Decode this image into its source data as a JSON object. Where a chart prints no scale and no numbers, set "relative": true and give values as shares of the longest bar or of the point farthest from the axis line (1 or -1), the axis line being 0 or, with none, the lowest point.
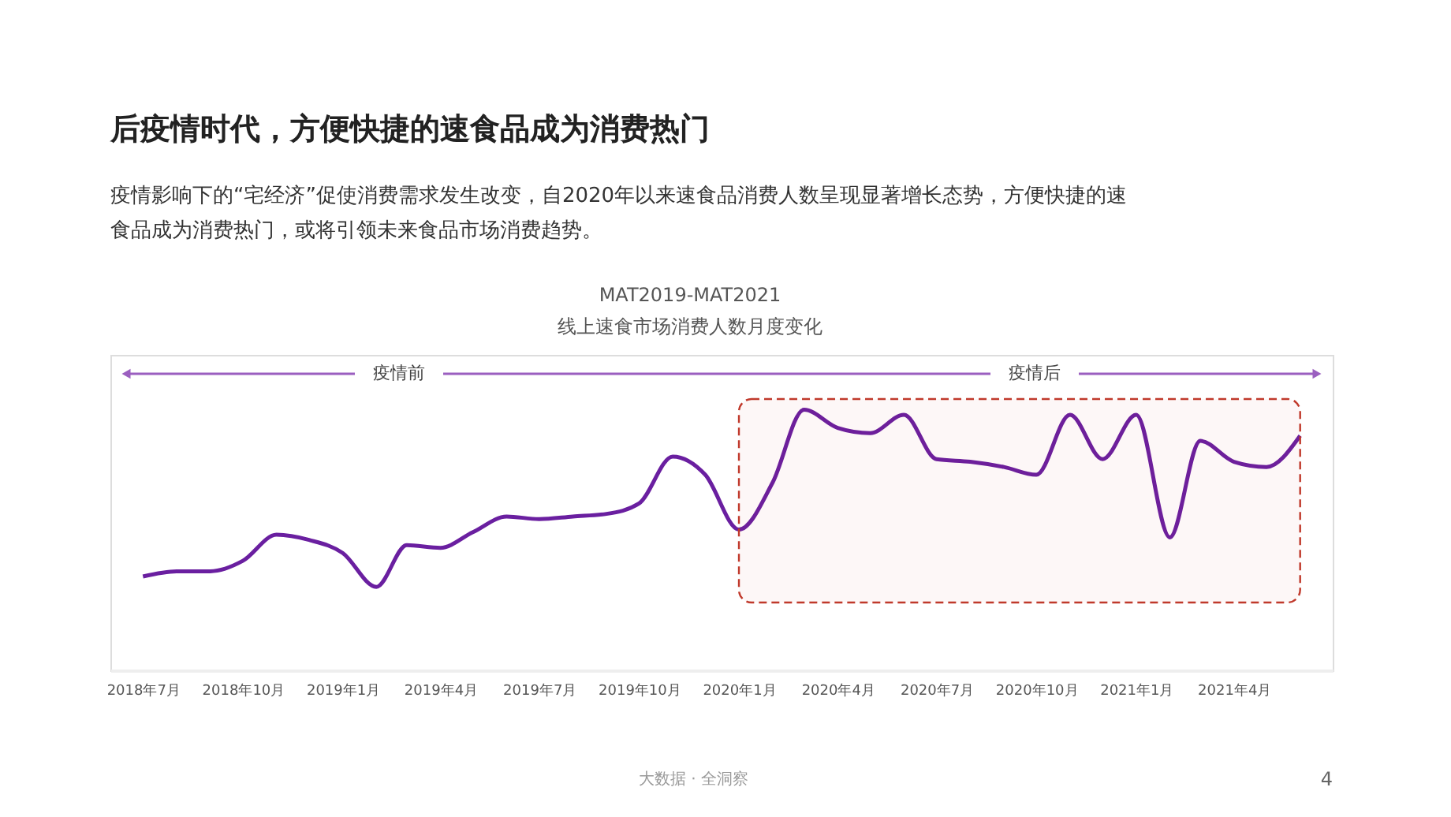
{
  "chart_data": {
    "type": "line",
    "relative": true,
    "title": "MAT2019-MAT2021",
    "subtitle": "线上速食市场消费人数月度变化",
    "annotations": [
      "后疫情时代，方便快捷的速食品成为消费热门",
      "疫情影响下的“宅经济”促使消费需求发生改变，自2020年以来速食品消费人数呈现显著增长态势，方便快捷的速食品成为消费热门，或将引领未来食品市场消费趋势。",
      "大数据 · 全洞察",
      "4",
      "疫情前",
      "疫情后"
    ],
    "x": [
      "2018-07",
      "2018-08",
      "2018-09",
      "2018-10",
      "2018-11",
      "2018-12",
      "2019-01",
      "2019-02",
      "2019-03",
      "2019-04",
      "2019-05",
      "2019-06",
      "2019-07",
      "2019-08",
      "2019-09",
      "2019-10",
      "2019-11",
      "2019-12",
      "2020-01",
      "2020-02",
      "2020-03",
      "2020-04",
      "2020-05",
      "2020-06",
      "2020-07",
      "2020-08",
      "2020-09",
      "2020-10",
      "2020-11",
      "2020-12",
      "2021-01",
      "2021-02",
      "2021-03",
      "2021-04",
      "2021-05",
      "2021-06"
    ],
    "xlim": [
      "2018-06",
      "2021-07"
    ],
    "xticks": [
      {
        "value": "2018-07",
        "label": "2018年7月"
      },
      {
        "value": "2018-10",
        "label": "2018年10月"
      },
      {
        "value": "2019-01",
        "label": "2019年1月"
      },
      {
        "value": "2019-04",
        "label": "2019年4月"
      },
      {
        "value": "2019-07",
        "label": "2019年7月"
      },
      {
        "value": "2019-10",
        "label": "2019年10月"
      },
      {
        "value": "2020-01",
        "label": "2020年1月"
      },
      {
        "value": "2020-04",
        "label": "2020年4月"
      },
      {
        "value": "2020-07",
        "label": "2020年7月"
      },
      {
        "value": "2020-10",
        "label": "2020年10月"
      },
      {
        "value": "2021-01",
        "label": "2021年1月"
      },
      {
        "value": "2021-04",
        "label": "2021年4月"
      }
    ],
    "series": [
      {
        "color": "#6a1fa0",
        "values": [
          0.36,
          0.38,
          0.38,
          0.42,
          0.52,
          0.5,
          0.45,
          0.32,
          0.48,
          0.47,
          0.53,
          0.59,
          0.58,
          0.59,
          0.6,
          0.64,
          0.82,
          0.75,
          0.54,
          0.72,
          1.0,
          0.93,
          0.91,
          0.98,
          0.81,
          0.8,
          0.78,
          0.75,
          0.98,
          0.81,
          0.98,
          0.51,
          0.88,
          0.8,
          0.78,
          0.9
        ]
      }
    ],
    "bands": [
      {
        "axis": "x",
        "from": "2020-01",
        "to": "2021-06",
        "color": "#c0392b"
      }
    ],
    "grid": false,
    "line_style": "solid",
    "marker": "none"
  }
}
